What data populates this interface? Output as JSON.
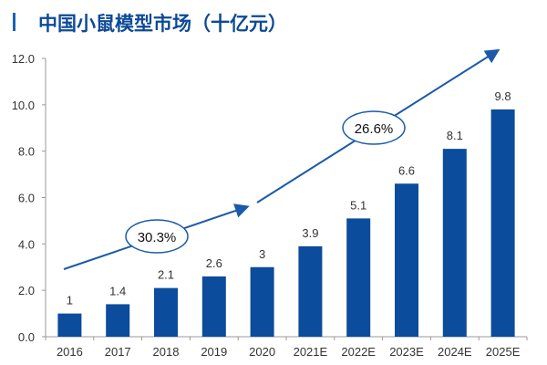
{
  "chart_data": {
    "type": "bar",
    "title": "中国小鼠模型市场（十亿元）",
    "categories": [
      "2016",
      "2017",
      "2018",
      "2019",
      "2020",
      "2021E",
      "2022E",
      "2023E",
      "2024E",
      "2025E"
    ],
    "values": [
      1,
      1.4,
      2.1,
      2.6,
      3,
      3.9,
      5.1,
      6.6,
      8.1,
      9.8
    ],
    "data_labels": [
      "1",
      "1.4",
      "2.1",
      "2.6",
      "3",
      "3.9",
      "5.1",
      "6.6",
      "8.1",
      "9.8"
    ],
    "ylim": [
      0,
      12
    ],
    "yticks": [
      "0.0",
      "2.0",
      "4.0",
      "6.0",
      "8.0",
      "10.0",
      "12.0"
    ],
    "grid": false,
    "annotations": [
      {
        "text": "30.3%",
        "span": [
          "2016",
          "2020"
        ]
      },
      {
        "text": "26.6%",
        "span": [
          "2020",
          "2025E"
        ]
      }
    ],
    "colors": {
      "bar": "#0b4c9c",
      "arrow": "#1b5aa8",
      "title": "#0d4a96"
    }
  }
}
